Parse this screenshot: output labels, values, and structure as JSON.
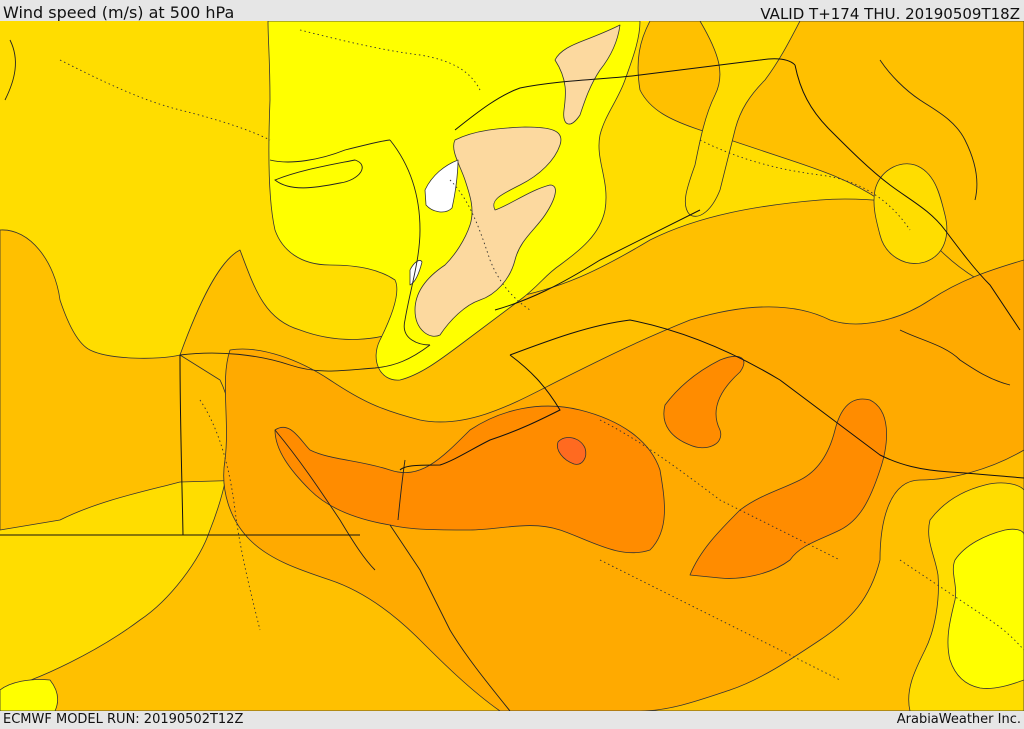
{
  "header": {
    "title": "Wind speed (m/s) at 500 hPa",
    "valid_time": "VALID T+174 THU. 20190509T18Z"
  },
  "footer": {
    "model_run": "ECMWF MODEL RUN: 20190502T12Z",
    "provider": "ArabiaWeather Inc."
  },
  "map": {
    "variable": "wind speed",
    "level": "500 hPa",
    "units": "m/s",
    "fill_colors": {
      "white": "#ffffff",
      "peach": "#fcd99f",
      "yellow": "#ffff00",
      "light_gold": "#ffdd00",
      "gold": "#ffc000",
      "orange": "#ffaa00",
      "dark_orange": "#ff8c00",
      "deep_orange": "#ff7a10",
      "red_orange": "#ff6a20"
    }
  }
}
